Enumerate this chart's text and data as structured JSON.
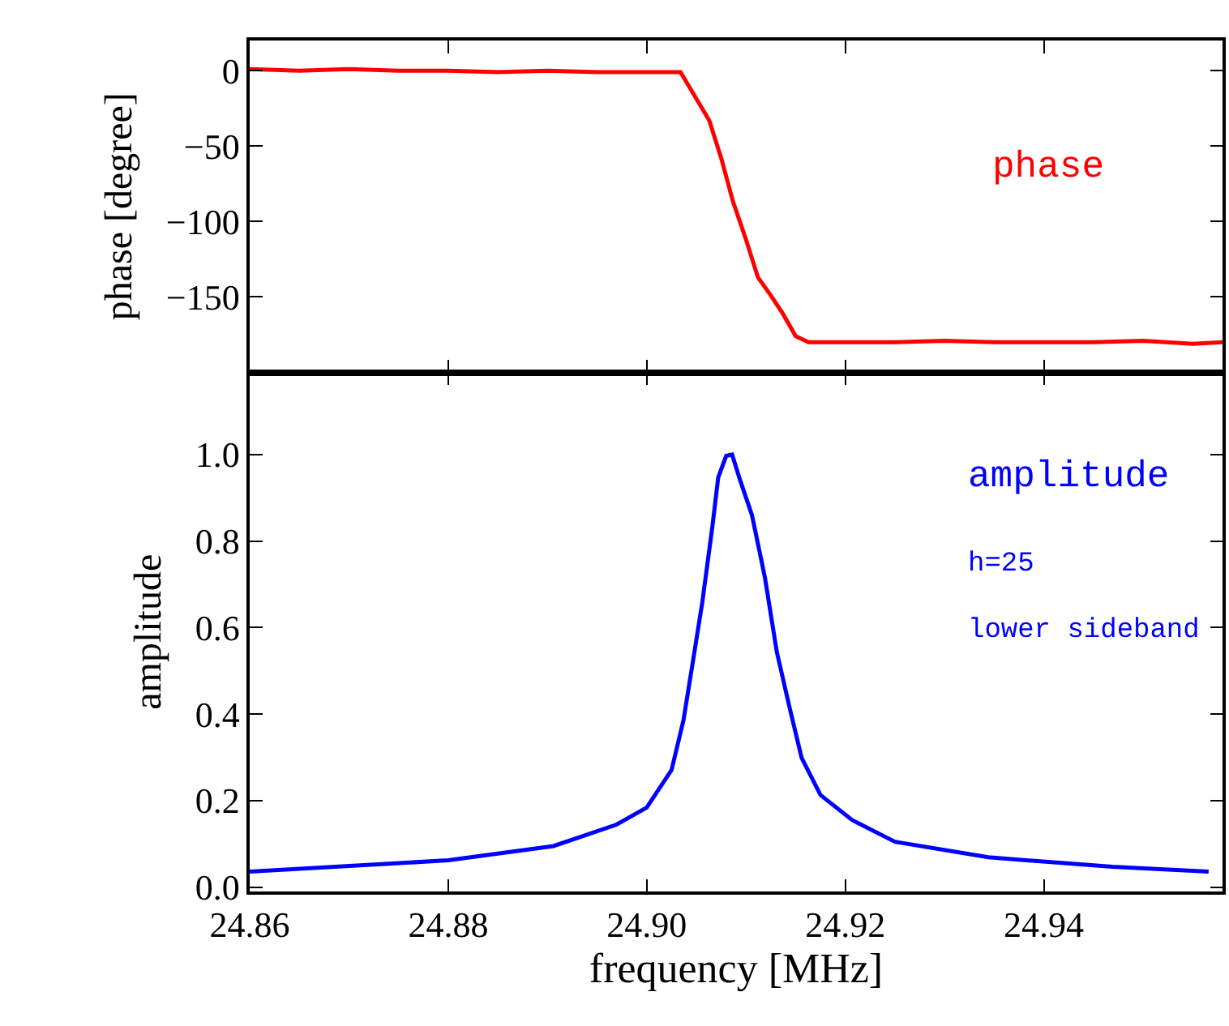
{
  "chart_data": [
    {
      "type": "line",
      "ylabel": "phase [degree]",
      "tick_labels": "y",
      "marker": "none",
      "line_style": "solid",
      "xlim": [
        24.86,
        24.958
      ],
      "xticks": [
        24.86,
        24.88,
        24.9,
        24.92,
        24.94
      ],
      "ylim": [
        -200,
        20
      ],
      "yticks": [
        0,
        {
          "value": -50,
          "label": "−50"
        },
        {
          "value": -100,
          "label": "−100"
        },
        {
          "value": -150,
          "label": "−150"
        }
      ],
      "annotations": [
        "phase"
      ],
      "series": [
        {
          "color": "#ff0000",
          "x": [
            24.86,
            24.865,
            24.87,
            24.875,
            24.88,
            24.885,
            24.89,
            24.895,
            24.9,
            24.9034,
            24.9063,
            24.9075,
            24.9087,
            24.91,
            24.9112,
            24.9125,
            24.9137,
            24.915,
            24.9163,
            24.92,
            24.925,
            24.93,
            24.935,
            24.94,
            24.945,
            24.95,
            24.955,
            24.958
          ],
          "values": [
            1,
            0,
            1,
            0,
            0,
            -1,
            0,
            -1,
            -1,
            -1,
            -33,
            -58,
            -87,
            -112,
            -137,
            -149,
            -161,
            -176,
            -180,
            -180,
            -180,
            -179,
            -180,
            -180,
            -180,
            -179,
            -181,
            -180
          ]
        }
      ]
    },
    {
      "type": "line",
      "xlabel": "frequency [MHz]",
      "ylabel": "amplitude",
      "marker": "none",
      "line_style": "solid",
      "xlim": [
        24.86,
        24.958
      ],
      "xticks": [
        24.86,
        24.88,
        {
          "value": 24.9,
          "label": "24.90"
        },
        24.92,
        24.94
      ],
      "ylim": [
        -0.01,
        1.19
      ],
      "yticks": [
        {
          "value": 0,
          "label": "0.0"
        },
        0.2,
        0.4,
        0.6,
        0.8,
        {
          "value": 1,
          "label": "1.0"
        }
      ],
      "annotations": [
        "amplitude",
        "h=25",
        "lower sideband"
      ],
      "series": [
        {
          "color": "#0000ff",
          "x": [
            24.86,
            24.88,
            24.8906,
            24.8969,
            24.9,
            24.9025,
            24.9037,
            24.9047,
            24.9056,
            24.9066,
            24.9072,
            24.908,
            24.9086,
            24.9094,
            24.9106,
            24.9119,
            24.9131,
            24.9144,
            24.9156,
            24.9175,
            24.9207,
            24.925,
            24.9344,
            24.9469,
            24.9566
          ],
          "values": [
            0.036,
            0.062,
            0.095,
            0.144,
            0.184,
            0.271,
            0.386,
            0.529,
            0.659,
            0.832,
            0.947,
            0.997,
            1.0,
            0.941,
            0.86,
            0.716,
            0.544,
            0.414,
            0.299,
            0.213,
            0.155,
            0.105,
            0.069,
            0.047,
            0.036
          ]
        }
      ]
    }
  ]
}
